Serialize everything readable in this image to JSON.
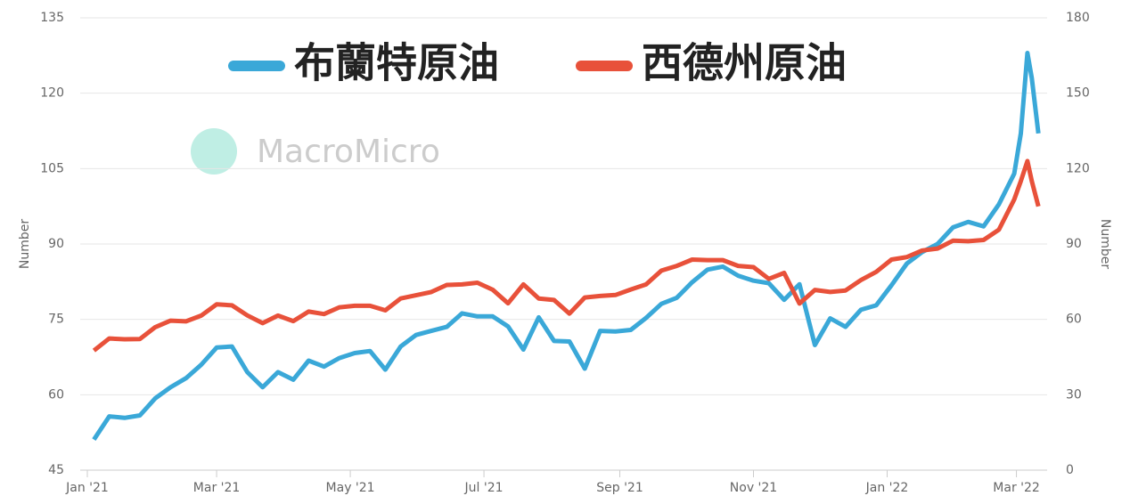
{
  "chart_data": {
    "type": "line",
    "watermark": "MacroMicro",
    "y_label": "Number",
    "y2_label": "Number",
    "x": [
      3,
      10,
      17,
      24,
      31,
      38,
      45,
      52,
      59,
      66,
      73,
      80,
      87,
      94,
      101,
      108,
      115,
      122,
      129,
      136,
      143,
      150,
      157,
      164,
      171,
      178,
      185,
      192,
      199,
      206,
      213,
      220,
      227,
      234,
      241,
      248,
      255,
      262,
      269,
      276,
      283,
      290,
      297,
      304,
      311,
      318,
      325,
      332,
      339,
      346,
      353,
      360,
      367,
      374,
      381,
      388,
      395,
      402,
      409,
      416,
      423,
      426,
      429,
      431,
      434
    ],
    "xlim": [
      0,
      438
    ],
    "xticks": [
      {
        "value": 0,
        "label": "Jan '21"
      },
      {
        "value": 59,
        "label": "Mar '21"
      },
      {
        "value": 120,
        "label": "May '21"
      },
      {
        "value": 181,
        "label": "Jul '21"
      },
      {
        "value": 243,
        "label": "Sep '21"
      },
      {
        "value": 304,
        "label": "Nov '21"
      },
      {
        "value": 365,
        "label": "Jan '22"
      },
      {
        "value": 424,
        "label": "Mar '22"
      }
    ],
    "ylim": [
      45,
      135
    ],
    "yticks": [
      45,
      60,
      75,
      90,
      105,
      120,
      135
    ],
    "y2lim": [
      0,
      180
    ],
    "y2ticks": [
      0,
      30,
      60,
      90,
      120,
      150,
      180
    ],
    "grid": true,
    "series": [
      {
        "name": "布蘭特原油",
        "color": "#3aa8d8",
        "axis": "y",
        "values": [
          51.1,
          55.7,
          55.4,
          55.9,
          59.3,
          61.5,
          63.3,
          66,
          69.4,
          69.6,
          64.5,
          61.5,
          64.5,
          63,
          66.8,
          65.6,
          67.3,
          68.3,
          68.7,
          65,
          69.6,
          71.9,
          72.7,
          73.5,
          76.2,
          75.6,
          75.6,
          73.6,
          69,
          75.4,
          70.7,
          70.6,
          65.2,
          72.7,
          72.6,
          72.9,
          75.3,
          78.1,
          79.3,
          82.4,
          84.9,
          85.5,
          83.7,
          82.7,
          82.2,
          78.9,
          82,
          69.9,
          75.2,
          73.5,
          76.9,
          77.8,
          81.8,
          86.1,
          88.4,
          90,
          93.3,
          94.4,
          93.5,
          97.9,
          104,
          112,
          128,
          123,
          112
        ]
      },
      {
        "name": "西德州原油",
        "color": "#e8513a",
        "axis": "y2",
        "values": [
          47.6,
          52.4,
          52.1,
          52.2,
          56.9,
          59.5,
          59.2,
          61.5,
          66,
          65.6,
          61.6,
          58.5,
          61.5,
          59.3,
          63.1,
          62.1,
          64.8,
          65.4,
          65.4,
          63.6,
          68.3,
          69.6,
          70.9,
          73.7,
          73.9,
          74.6,
          71.8,
          66.4,
          73.9,
          68.3,
          67.7,
          62.3,
          68.7,
          69.3,
          69.7,
          71.9,
          73.9,
          79.4,
          81.3,
          83.8,
          83.6,
          83.6,
          81.3,
          80.8,
          76.1,
          78.5,
          66.3,
          71.7,
          70.9,
          71.5,
          75.6,
          78.9,
          83.8,
          84.8,
          87.4,
          88.2,
          91.3,
          91.1,
          91.6,
          95.7,
          107.7,
          115,
          123,
          115,
          105
        ]
      }
    ]
  }
}
